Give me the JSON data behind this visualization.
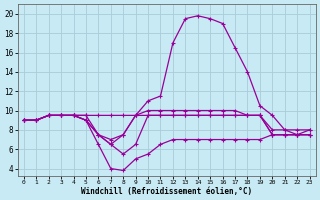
{
  "xlabel": "Windchill (Refroidissement éolien,°C)",
  "background_color": "#c8eaf4",
  "grid_color": "#aaccd8",
  "line_color": "#990099",
  "x_ticks": [
    0,
    1,
    2,
    3,
    4,
    5,
    6,
    7,
    8,
    9,
    10,
    11,
    12,
    13,
    14,
    15,
    16,
    17,
    18,
    19,
    20,
    21,
    22,
    23
  ],
  "y_ticks": [
    4,
    6,
    8,
    10,
    12,
    14,
    16,
    18,
    20
  ],
  "ylim": [
    3.2,
    21.0
  ],
  "xlim": [
    -0.5,
    23.5
  ],
  "line1_y": [
    9.0,
    9.0,
    9.5,
    9.5,
    9.5,
    9.5,
    9.5,
    9.5,
    9.5,
    9.5,
    10.0,
    10.0,
    10.0,
    10.0,
    10.0,
    10.0,
    10.0,
    10.0,
    9.5,
    9.5,
    8.0,
    8.0,
    8.0,
    8.0
  ],
  "line2_y": [
    9.0,
    9.0,
    9.5,
    9.5,
    9.5,
    9.5,
    7.5,
    7.0,
    7.5,
    9.5,
    11.0,
    11.5,
    17.0,
    19.5,
    19.8,
    19.5,
    19.0,
    16.5,
    14.0,
    10.5,
    9.5,
    8.0,
    7.5,
    8.0
  ],
  "line3_y": [
    9.0,
    9.0,
    9.5,
    9.5,
    9.5,
    9.0,
    7.5,
    6.5,
    7.5,
    9.5,
    9.5,
    9.5,
    9.5,
    9.5,
    9.5,
    9.5,
    9.5,
    9.5,
    9.5,
    9.5,
    7.5,
    7.5,
    7.5,
    7.5
  ],
  "line4_y": [
    9.0,
    9.0,
    9.5,
    9.5,
    9.5,
    9.0,
    7.5,
    6.5,
    5.5,
    6.5,
    9.5,
    9.5,
    9.5,
    9.5,
    9.5,
    9.5,
    9.5,
    9.5,
    9.5,
    9.5,
    7.5,
    7.5,
    7.5,
    7.5
  ],
  "line5_y": [
    9.0,
    9.0,
    9.5,
    9.5,
    9.5,
    9.0,
    6.5,
    4.0,
    3.8,
    5.0,
    5.5,
    6.5,
    7.0,
    7.0,
    7.0,
    7.0,
    7.0,
    7.0,
    7.0,
    7.0,
    7.5,
    7.5,
    7.5,
    7.5
  ]
}
